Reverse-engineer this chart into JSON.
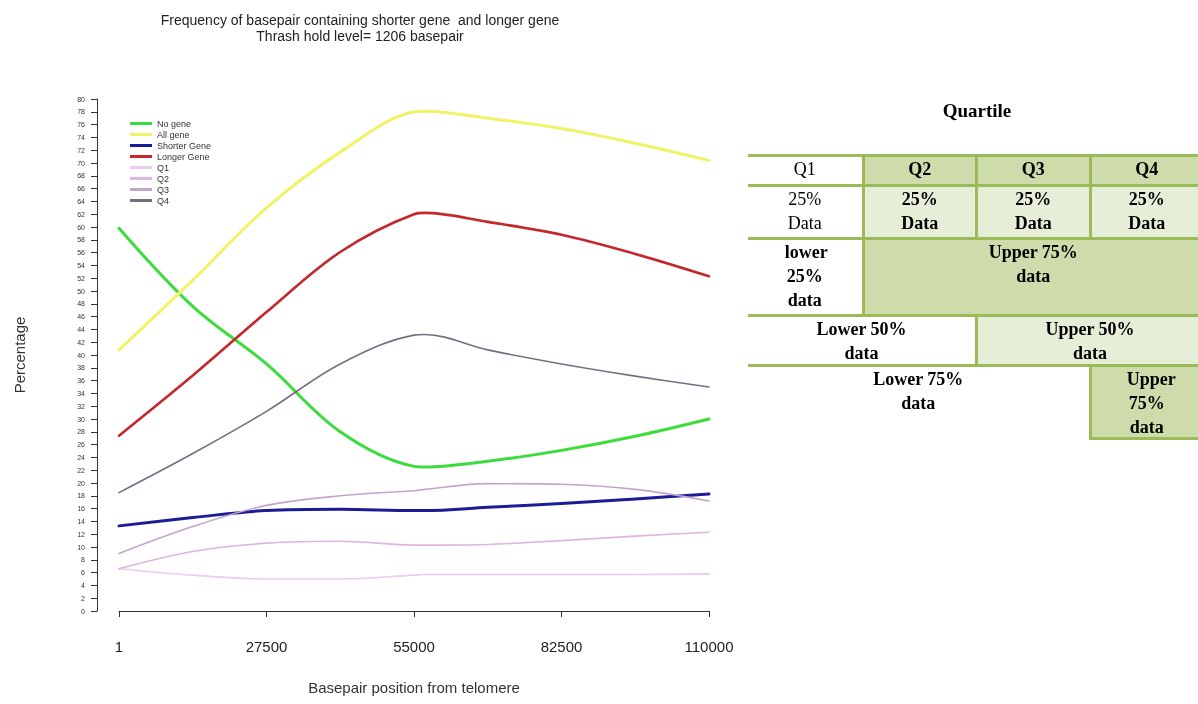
{
  "chart_data": [
    {
      "type": "line",
      "title": "Frequency of basepair containing shorter gene  and longer gene",
      "subtitle": "Thrash hold level= 1206 basepair",
      "xlabel": "Basepair position from telomere",
      "ylabel": "Percentage",
      "legend": "top left",
      "x": [
        1,
        13750,
        27500,
        41250,
        55000,
        57000,
        68750,
        82500,
        96250,
        110000
      ],
      "series": [
        {
          "name": "No gene",
          "color": "#3ddc3d",
          "values": [
            59.8,
            47.6,
            38.6,
            28.0,
            22.6,
            22.5,
            23.4,
            25.1,
            27.3,
            30.0
          ]
        },
        {
          "name": "All gene",
          "color": "#f2f266",
          "values": [
            40.8,
            51.7,
            63.0,
            71.7,
            78.0,
            78.1,
            77.0,
            75.4,
            73.1,
            70.4
          ]
        },
        {
          "name": "Shorter Gene",
          "color": "#1c1c96",
          "values": [
            13.3,
            14.6,
            15.7,
            15.9,
            15.7,
            15.7,
            16.2,
            16.8,
            17.5,
            18.3
          ]
        },
        {
          "name": "Longer Gene",
          "color": "#c3282c",
          "values": [
            27.4,
            36.8,
            46.7,
            56.1,
            62.0,
            62.2,
            60.8,
            58.8,
            55.8,
            52.3
          ]
        },
        {
          "name": "Q1",
          "color": "#ebcbef",
          "values": [
            6.6,
            5.6,
            5.0,
            5.0,
            5.6,
            5.7,
            5.7,
            5.7,
            5.7,
            5.8
          ]
        },
        {
          "name": "Q2",
          "color": "#deb4e0",
          "values": [
            6.6,
            9.3,
            10.6,
            10.9,
            10.3,
            10.3,
            10.4,
            11.0,
            11.7,
            12.3
          ]
        },
        {
          "name": "Q3",
          "color": "#c3a5cc",
          "values": [
            9.0,
            13.2,
            16.5,
            18.0,
            18.8,
            19.0,
            19.9,
            19.8,
            19.0,
            17.2
          ]
        },
        {
          "name": "Q4",
          "color": "#7b6b82",
          "values": [
            18.5,
            24.6,
            31.2,
            38.6,
            43.1,
            43.2,
            40.8,
            38.6,
            36.7,
            35.0
          ]
        }
      ],
      "xlim": [
        1,
        110000
      ],
      "xticks": [
        1,
        27500,
        55000,
        82500,
        110000
      ],
      "ylim": [
        0,
        80
      ],
      "yticks": [
        0,
        2,
        4,
        6,
        8,
        10,
        12,
        14,
        16,
        18,
        20,
        22,
        24,
        26,
        28,
        30,
        32,
        34,
        36,
        38,
        40,
        42,
        44,
        46,
        48,
        50,
        52,
        54,
        56,
        58,
        60,
        62,
        64,
        66,
        68,
        70,
        72,
        74,
        76,
        78,
        80
      ]
    },
    {
      "type": "other",
      "title": "Quartile",
      "annotations": [
        "Q1",
        "Q2",
        "Q3",
        "Q4",
        "25% Data",
        "25% Data",
        "25% Data",
        "25% Data",
        "lower 25% data",
        "Upper 75% data",
        "Lower 50% data",
        "Upper 50% data",
        "Lower 75% data",
        "Upper 75% data"
      ],
      "colors": [
        "#ffffff",
        "#cddcaa",
        "#cddcaa",
        "#cddcaa",
        "#ffffff",
        "#e6eed8",
        "#e6eed8",
        "#e6eed8",
        "#ffffff",
        "#cddcaa",
        "#ffffff",
        "#e6eed8",
        "#ffffff",
        "#cddcaa"
      ]
    }
  ]
}
